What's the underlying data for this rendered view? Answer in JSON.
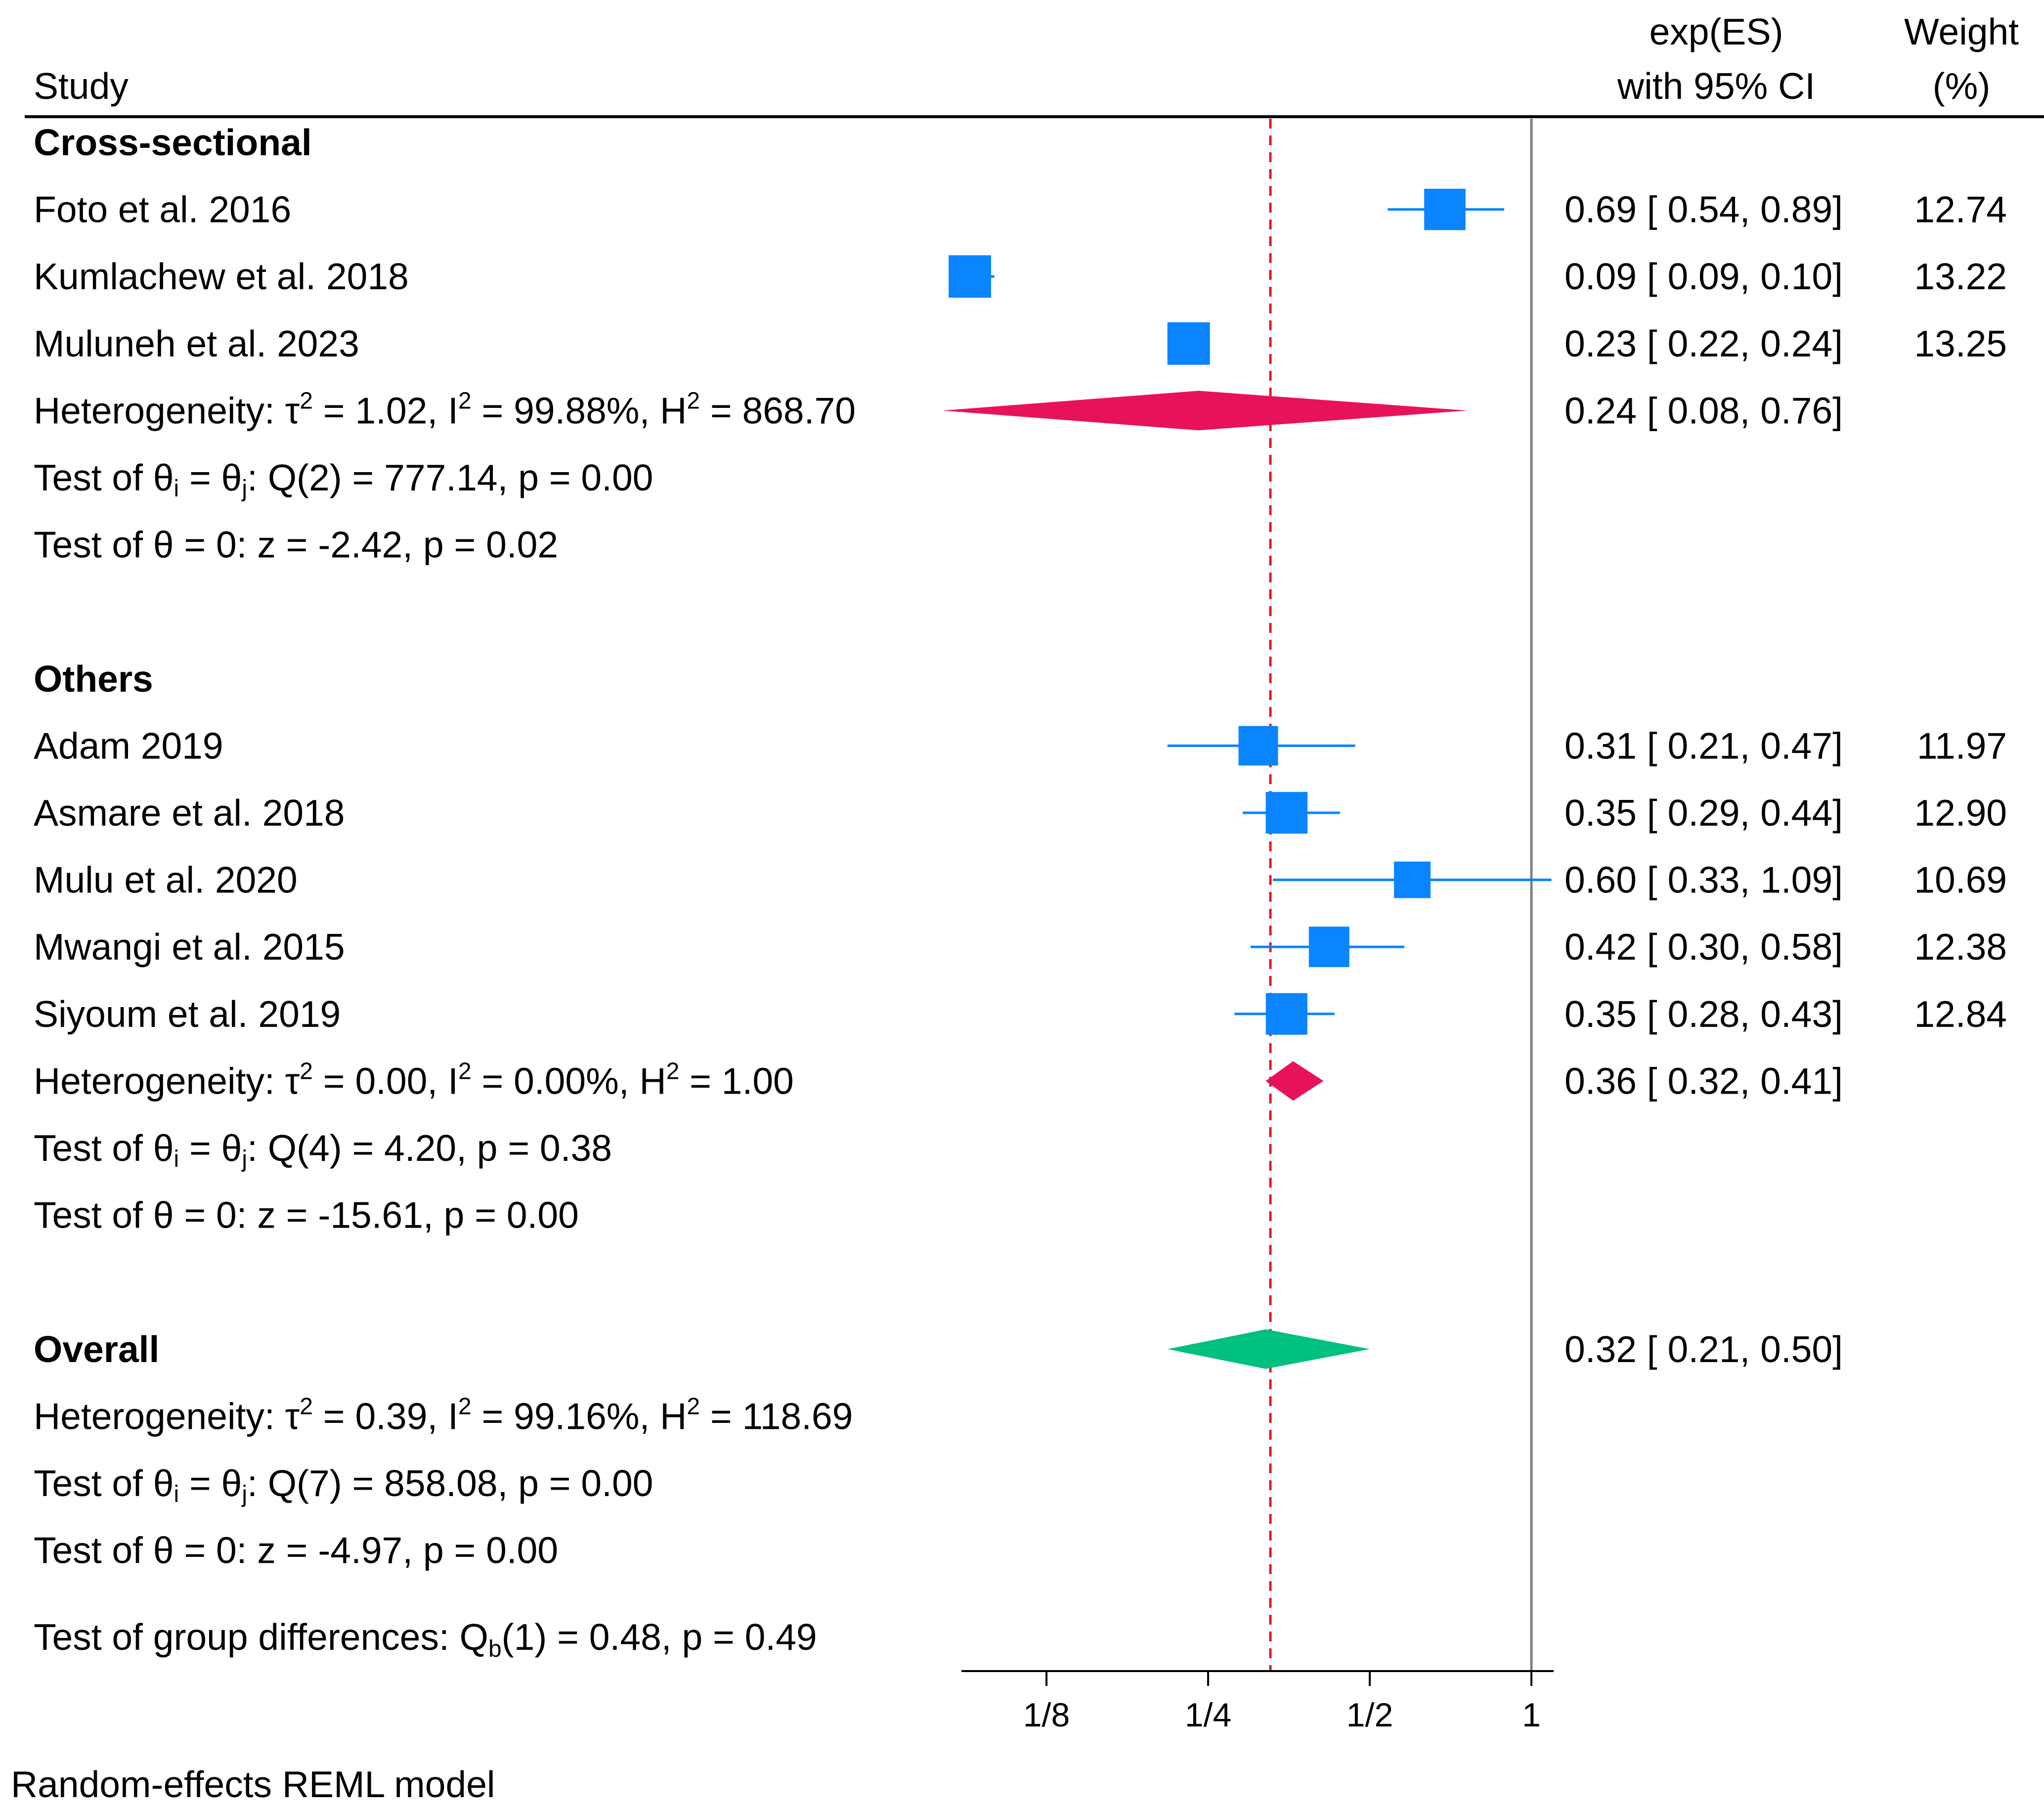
{
  "header": {
    "study": "Study",
    "es_line1": "exp(ES)",
    "es_line2": "with 95% CI",
    "weight_line1": "Weight",
    "weight_line2": "(%)"
  },
  "groups": [
    {
      "name": "Cross-sectional",
      "studies": [
        {
          "label": "Foto et al. 2016",
          "es": 0.69,
          "lo": 0.54,
          "hi": 0.89,
          "ci_text": "0.69 [ 0.54,  0.89]",
          "weight": "12.74"
        },
        {
          "label": "Kumlachew et al. 2018",
          "es": 0.09,
          "lo": 0.09,
          "hi": 0.1,
          "ci_text": "0.09 [ 0.09,  0.10]",
          "weight": "13.22"
        },
        {
          "label": "Muluneh et al. 2023",
          "es": 0.23,
          "lo": 0.22,
          "hi": 0.24,
          "ci_text": "0.23 [ 0.22,  0.24]",
          "weight": "13.25"
        }
      ],
      "pooled": {
        "es": 0.24,
        "lo": 0.08,
        "hi": 0.76,
        "ci_text": "0.24 [ 0.08,  0.76]",
        "color": "#e8115b"
      },
      "heterogeneity": {
        "prefix": "Heterogeneity: τ",
        "tau2": " = 1.02, I",
        "i2": " = 99.88%, H",
        "h2": " = 868.70"
      },
      "test_q": {
        "prefix": "Test of θ",
        "i": "i",
        "mid": " = θ",
        "j": "j",
        "rest": ": Q(2) = 777.14, p = 0.00"
      },
      "test_z": "Test of θ = 0: z = -2.42, p = 0.02"
    },
    {
      "name": "Others",
      "studies": [
        {
          "label": "Adam 2019",
          "es": 0.31,
          "lo": 0.21,
          "hi": 0.47,
          "ci_text": "0.31 [ 0.21,  0.47]",
          "weight": "11.97"
        },
        {
          "label": "Asmare et al. 2018",
          "es": 0.35,
          "lo": 0.29,
          "hi": 0.44,
          "ci_text": "0.35 [ 0.29,  0.44]",
          "weight": "12.90"
        },
        {
          "label": "Mulu et al. 2020",
          "es": 0.6,
          "lo": 0.33,
          "hi": 1.09,
          "ci_text": "0.60 [ 0.33,  1.09]",
          "weight": "10.69"
        },
        {
          "label": "Mwangi et al. 2015",
          "es": 0.42,
          "lo": 0.3,
          "hi": 0.58,
          "ci_text": "0.42 [ 0.30,  0.58]",
          "weight": "12.38"
        },
        {
          "label": "Siyoum et al. 2019",
          "es": 0.35,
          "lo": 0.28,
          "hi": 0.43,
          "ci_text": "0.35 [ 0.28,  0.43]",
          "weight": "12.84"
        }
      ],
      "pooled": {
        "es": 0.36,
        "lo": 0.32,
        "hi": 0.41,
        "ci_text": "0.36 [ 0.32,  0.41]",
        "color": "#e8115b"
      },
      "heterogeneity": {
        "prefix": "Heterogeneity: τ",
        "tau2": " = 0.00, I",
        "i2": " = 0.00%, H",
        "h2": " = 1.00"
      },
      "test_q": {
        "prefix": "Test of θ",
        "i": "i",
        "mid": " = θ",
        "j": "j",
        "rest": ": Q(4) = 4.20, p = 0.38"
      },
      "test_z": "Test of θ = 0: z = -15.61, p = 0.00"
    }
  ],
  "overall": {
    "name": "Overall",
    "pooled": {
      "es": 0.32,
      "lo": 0.21,
      "hi": 0.5,
      "ci_text": "0.32 [ 0.21,  0.50]",
      "color": "#00c07f"
    },
    "heterogeneity": {
      "prefix": "Heterogeneity: τ",
      "tau2": " = 0.39, I",
      "i2": " = 99.16%, H",
      "h2": " = 118.69"
    },
    "test_q": {
      "prefix": "Test of θ",
      "i": "i",
      "mid": " = θ",
      "j": "j",
      "rest": ": Q(7) = 858.08, p = 0.00"
    },
    "test_z": "Test of θ = 0: z = -4.97, p = 0.00"
  },
  "group_test": {
    "prefix": "Test of group differences: Q",
    "sub": "b",
    "rest": "(1) = 0.48, p = 0.49"
  },
  "footnote": "Random-effects REML model",
  "chart_data": {
    "type": "forest",
    "x_scale": "log",
    "x_ticks": [
      {
        "value": 0.125,
        "label": "1/8"
      },
      {
        "value": 0.25,
        "label": "1/4"
      },
      {
        "value": 0.5,
        "label": "1/2"
      },
      {
        "value": 1,
        "label": "1"
      }
    ],
    "x_range": [
      0.0825,
      1.09
    ],
    "null_line": 1,
    "overall_line": 0.32,
    "study_marker_color": "#0a84ff",
    "axis_color": "#808080",
    "overall_line_color": "#e31a1c"
  }
}
